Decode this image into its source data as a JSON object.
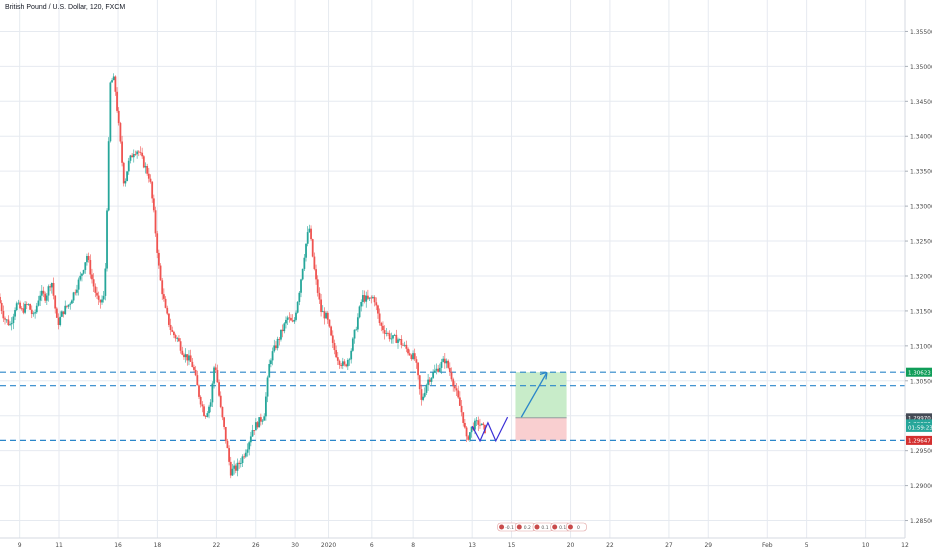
{
  "header": {
    "title": "British Pound / U.S. Dollar, 120, FXCM"
  },
  "colors": {
    "up": "#26a69a",
    "down": "#ef5350",
    "grid": "#e6eaf0",
    "axis_text": "#4a4a4a",
    "level_line": "#2b86c9",
    "arrow": "#2b86c9",
    "pattern": "#3a2fd6",
    "target_zone": "#c8ecc9",
    "stop_zone": "#f9cfd0",
    "badge_target": "#0f9d58",
    "badge_entry": "#444a55",
    "badge_price": "#26a69a",
    "badge_stop": "#d32f2f"
  },
  "chart_data": {
    "type": "candlestick",
    "title": "British Pound / U.S. Dollar, 120, FXCM",
    "ylim": [
      1.2825,
      1.3595
    ],
    "xlim": [
      8,
      54
    ],
    "y_ticks": [
      "1.35500",
      "1.35000",
      "1.34500",
      "1.34000",
      "1.33500",
      "1.33000",
      "1.32500",
      "1.32000",
      "1.31500",
      "1.31000",
      "1.30500",
      "1.30000",
      "1.29500",
      "1.29000",
      "1.28500"
    ],
    "x_ticks": [
      {
        "label": "9",
        "x": 9
      },
      {
        "label": "11",
        "x": 11
      },
      {
        "label": "16",
        "x": 14
      },
      {
        "label": "18",
        "x": 16
      },
      {
        "label": "22",
        "x": 19
      },
      {
        "label": "26",
        "x": 21
      },
      {
        "label": "30",
        "x": 23
      },
      {
        "label": "2020",
        "x": 24.7
      },
      {
        "label": "6",
        "x": 26.9
      },
      {
        "label": "8",
        "x": 29
      },
      {
        "label": "13",
        "x": 32
      },
      {
        "label": "15",
        "x": 34
      },
      {
        "label": "20",
        "x": 37
      },
      {
        "label": "22",
        "x": 39
      },
      {
        "label": "27",
        "x": 42
      },
      {
        "label": "29",
        "x": 44
      },
      {
        "label": "Feb",
        "x": 47
      },
      {
        "label": "5",
        "x": 49
      },
      {
        "label": "10",
        "x": 52
      },
      {
        "label": "12",
        "x": 54
      }
    ],
    "series_path": [
      [
        8.0,
        1.317
      ],
      [
        8.3,
        1.314
      ],
      [
        8.6,
        1.313
      ],
      [
        8.9,
        1.316
      ],
      [
        9.2,
        1.315
      ],
      [
        9.5,
        1.316
      ],
      [
        9.8,
        1.314
      ],
      [
        10.1,
        1.3175
      ],
      [
        10.4,
        1.317
      ],
      [
        10.7,
        1.3195
      ],
      [
        11.0,
        1.313
      ],
      [
        11.3,
        1.315
      ],
      [
        11.6,
        1.316
      ],
      [
        11.9,
        1.318
      ],
      [
        12.2,
        1.32
      ],
      [
        12.5,
        1.323
      ],
      [
        12.8,
        1.319
      ],
      [
        13.1,
        1.316
      ],
      [
        13.4,
        1.317
      ],
      [
        13.7,
        1.348
      ],
      [
        13.9,
        1.348
      ],
      [
        14.1,
        1.342
      ],
      [
        14.4,
        1.333
      ],
      [
        14.6,
        1.336
      ],
      [
        14.9,
        1.338
      ],
      [
        15.1,
        1.338
      ],
      [
        15.4,
        1.336
      ],
      [
        15.7,
        1.334
      ],
      [
        15.9,
        1.329
      ],
      [
        16.2,
        1.32
      ],
      [
        16.5,
        1.315
      ],
      [
        16.8,
        1.312
      ],
      [
        17.1,
        1.311
      ],
      [
        17.4,
        1.309
      ],
      [
        17.7,
        1.308
      ],
      [
        17.9,
        1.307
      ],
      [
        18.2,
        1.303
      ],
      [
        18.5,
        1.3
      ],
      [
        18.8,
        1.302
      ],
      [
        19.0,
        1.308
      ],
      [
        19.3,
        1.301
      ],
      [
        19.6,
        1.296
      ],
      [
        19.8,
        1.292
      ],
      [
        20.1,
        1.2925
      ],
      [
        20.4,
        1.294
      ],
      [
        20.7,
        1.296
      ],
      [
        20.9,
        1.298
      ],
      [
        21.2,
        1.299
      ],
      [
        21.5,
        1.3
      ],
      [
        21.8,
        1.308
      ],
      [
        22.1,
        1.31
      ],
      [
        22.4,
        1.312
      ],
      [
        22.7,
        1.314
      ],
      [
        23.0,
        1.313
      ],
      [
        23.3,
        1.318
      ],
      [
        23.6,
        1.324
      ],
      [
        23.8,
        1.327
      ],
      [
        24.1,
        1.32
      ],
      [
        24.4,
        1.315
      ],
      [
        24.7,
        1.314
      ],
      [
        25.0,
        1.31
      ],
      [
        25.3,
        1.308
      ],
      [
        25.6,
        1.307
      ],
      [
        25.9,
        1.309
      ],
      [
        26.2,
        1.313
      ],
      [
        26.5,
        1.317
      ],
      [
        26.8,
        1.3165
      ],
      [
        27.1,
        1.317
      ],
      [
        27.4,
        1.313
      ],
      [
        27.7,
        1.312
      ],
      [
        28.0,
        1.311
      ],
      [
        28.3,
        1.311
      ],
      [
        28.6,
        1.31
      ],
      [
        28.9,
        1.309
      ],
      [
        29.2,
        1.308
      ],
      [
        29.5,
        1.302
      ],
      [
        29.8,
        1.305
      ],
      [
        30.1,
        1.306
      ],
      [
        30.4,
        1.307
      ],
      [
        30.7,
        1.308
      ],
      [
        31.0,
        1.306
      ],
      [
        31.3,
        1.303
      ],
      [
        31.6,
        1.3
      ],
      [
        31.8,
        1.2965
      ],
      [
        32.1,
        1.2985
      ],
      [
        32.4,
        1.299
      ],
      [
        32.7,
        1.298
      ]
    ],
    "levels": [
      1.30623,
      1.3043,
      1.29647
    ],
    "position": {
      "type": "long",
      "entry": 1.2997,
      "target": 1.30623,
      "stop": 1.29647,
      "x_start": 34.2,
      "x_end": 36.8
    },
    "arrow": {
      "from": [
        34.5,
        1.2998
      ],
      "to": [
        35.8,
        1.3062
      ]
    },
    "pattern_points": [
      [
        32.0,
        1.2985
      ],
      [
        32.4,
        1.2964
      ],
      [
        32.8,
        1.299
      ],
      [
        33.2,
        1.2964
      ],
      [
        33.8,
        1.2998
      ]
    ],
    "badges": [
      {
        "label": "1.30623",
        "value": 1.30623,
        "kind": "badge_target"
      },
      {
        "label": "1.29970",
        "value": 1.2997,
        "kind": "badge_entry"
      },
      {
        "label": "1.29883",
        "value": 1.29883,
        "kind": "badge_price"
      },
      {
        "label": "01:59:23",
        "value": 1.29833,
        "kind": "badge_price"
      },
      {
        "label": "1.29647",
        "value": 1.29647,
        "kind": "badge_stop"
      }
    ],
    "event_markers": {
      "x": [
        33.8,
        34.7,
        35.6,
        36.5,
        37.3
      ],
      "labels": [
        "-0.1",
        "0.2",
        "0.1",
        "0.1",
        "0"
      ]
    }
  }
}
